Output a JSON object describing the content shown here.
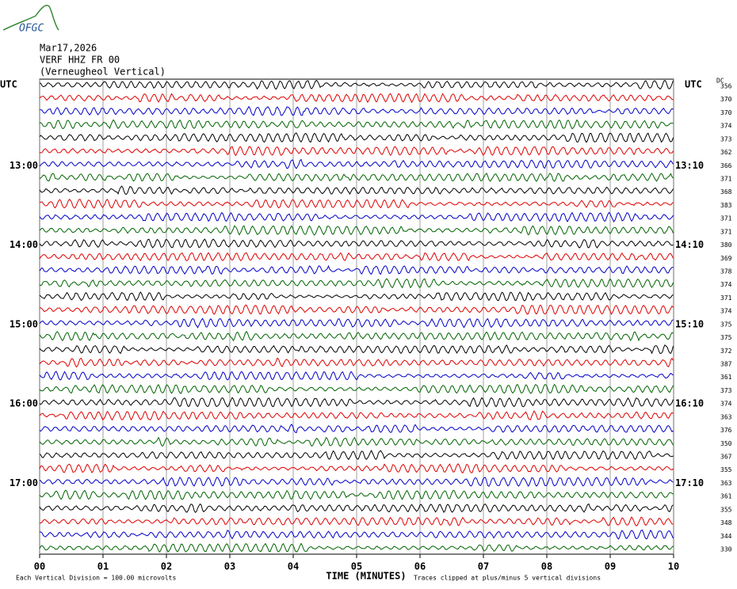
{
  "logo": "OFGC",
  "chart_data": {
    "type": "helicorder",
    "date": "Mar17,2026",
    "station": "VERF HHZ FR 00",
    "location": "(Verneugheol Vertical)",
    "left_axis_label": "UTC",
    "right_axis_label": "UTC",
    "dc_label": "DC",
    "left_times": [
      "13:00",
      "14:00",
      "15:00",
      "16:00",
      "17:00"
    ],
    "right_times": [
      "13:10",
      "14:10",
      "15:10",
      "16:10",
      "17:10"
    ],
    "dc_values": [
      356,
      370,
      370,
      374,
      373,
      362,
      366,
      371,
      368,
      383,
      371,
      371,
      380,
      369,
      378,
      374,
      371,
      374,
      375,
      375,
      372,
      387,
      361,
      373,
      374,
      363,
      376,
      350,
      367,
      355,
      363,
      361,
      355,
      348,
      344,
      330
    ],
    "colors": [
      "#000000",
      "#e00000",
      "#0000c8",
      "#006400"
    ],
    "xlabel": "TIME (MINUTES)",
    "xlim": [
      0,
      10
    ],
    "xticks": [
      {
        "value": 0,
        "label": "00"
      },
      {
        "value": 1,
        "label": "01"
      },
      {
        "value": 2,
        "label": "02"
      },
      {
        "value": 3,
        "label": "03"
      },
      {
        "value": 4,
        "label": "04"
      },
      {
        "value": 5,
        "label": "05"
      },
      {
        "value": 6,
        "label": "06"
      },
      {
        "value": 7,
        "label": "07"
      },
      {
        "value": 8,
        "label": "08"
      },
      {
        "value": 9,
        "label": "09"
      },
      {
        "value": 10,
        "label": "10"
      }
    ],
    "grid": true,
    "footer_left": "Each Vertical Division =  100.00 microvolts",
    "footer_right": "Traces clipped at plus/minus 5 vertical divisions"
  }
}
